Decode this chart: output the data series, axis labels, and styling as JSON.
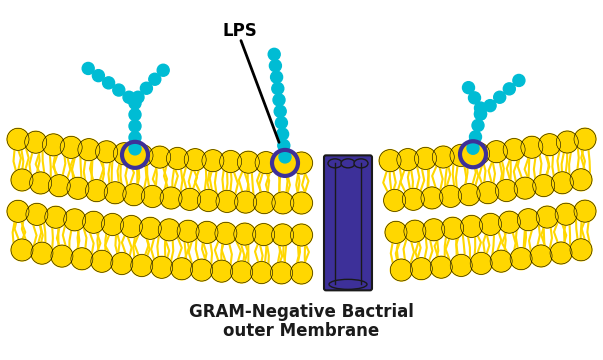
{
  "bg_color": "#ffffff",
  "cyan_color": "#00BCD4",
  "yellow_color": "#FFD700",
  "purple_color": "#3D3099",
  "text_color": "#1a1a1a",
  "title_line1": "GRAM-Negative Bactrial",
  "title_line2": "outer Membrane",
  "lps_label": "LPS",
  "fig_width": 6.03,
  "fig_height": 3.6,
  "dpi": 100
}
